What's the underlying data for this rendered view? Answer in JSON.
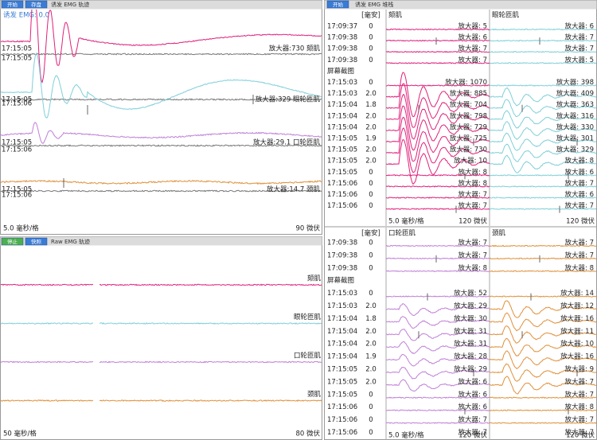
{
  "evoked_trace_panel": {
    "buttons": [
      "开始",
      "存盘"
    ],
    "title": "诱发 EMG 轨迹",
    "readout": "诱发 EMG: 0.0",
    "traces": [
      {
        "times": [
          "17:15:05",
          "17:15:05"
        ],
        "label": "放大器:730 颏肌",
        "color": "#e0207a"
      },
      {
        "times": [
          "17:15:05",
          "17:15:06"
        ],
        "label": "放大器:329 眼轮匝肌",
        "color": "#7fcfd8"
      },
      {
        "times": [
          "17:15:05",
          "17:15:06"
        ],
        "label": "放大器:29.1 口轮匝肌",
        "color": "#c07fd8"
      },
      {
        "times": [
          "17:15:05",
          "17:15:06"
        ],
        "label": "放大器:14.7 颈肌",
        "color": "#e0903a"
      }
    ],
    "timebase": "5.0 毫秒/格",
    "sensitivity": "90 微伏"
  },
  "raw_panel": {
    "buttons": [
      "停止",
      "快照"
    ],
    "title": "Raw EMG 轨迹",
    "channels": [
      {
        "name": "颏肌",
        "color": "#e0207a"
      },
      {
        "name": "眼轮匝肌",
        "color": "#7fcfd8"
      },
      {
        "name": "口轮匝肌",
        "color": "#c07fd8"
      },
      {
        "name": "颈肌",
        "color": "#e0903a"
      }
    ],
    "timebase": "50 毫秒/格",
    "sensitivity": "80 微伏"
  },
  "stack_panel": {
    "button": "开始",
    "title": "诱发 EMG 堆栈",
    "unit_header": "[毫安]",
    "rows": [
      {
        "time": "17:09:37",
        "ma": "0"
      },
      {
        "time": "17:09:38",
        "ma": "0"
      },
      {
        "time": "17:09:38",
        "ma": "0"
      },
      {
        "time": "17:09:38",
        "ma": "0"
      },
      {
        "time": "屏幕截图"
      },
      {
        "time": "17:15:03",
        "ma": "0"
      },
      {
        "time": "17:15:03",
        "ma": "2.0"
      },
      {
        "time": "17:15:04",
        "ma": "1.8"
      },
      {
        "time": "17:15:04",
        "ma": "2.0"
      },
      {
        "time": "17:15:04",
        "ma": "2.0"
      },
      {
        "time": "17:15:05",
        "ma": "1.9"
      },
      {
        "time": "17:15:05",
        "ma": "2.0"
      },
      {
        "time": "17:15:05",
        "ma": "2.0"
      },
      {
        "time": "17:15:05",
        "ma": "0"
      },
      {
        "time": "17:15:06",
        "ma": "0"
      },
      {
        "time": "17:15:06",
        "ma": "0"
      },
      {
        "time": "17:15:06",
        "ma": "0"
      }
    ],
    "channels": [
      {
        "name": "颏肌",
        "color": "#e0207a",
        "amps": [
          "放大器: 5",
          "放大器: 6",
          "放大器: 7",
          "放大器: 7",
          "放大器: 1070",
          "放大器: 885",
          "放大器: 704",
          "放大器: 798",
          "放大器: 729",
          "放大器: 725",
          "放大器: 730",
          "放大器: 10",
          "放大器: 8",
          "放大器: 8",
          "放大器: 7",
          "放大器: 7"
        ]
      },
      {
        "name": "眼轮匝肌",
        "color": "#7fcfd8",
        "amps": [
          "放大器: 6",
          "放大器: 7",
          "放大器: 7",
          "放大器: 5",
          "放大器: 398",
          "放大器: 409",
          "放大器: 363",
          "放大器: 316",
          "放大器: 330",
          "放大器: 301",
          "放大器: 329",
          "放大器: 8",
          "放大器: 6",
          "放大器: 7",
          "放大器: 6",
          "放大器: 7"
        ]
      }
    ],
    "timebase": "5.0 毫秒/格",
    "sensitivities": [
      "120 微伏",
      "120 微伏"
    ]
  },
  "stack_panel_lower": {
    "unit_header": "[毫安]",
    "rows": [
      {
        "time": "17:09:38",
        "ma": "0"
      },
      {
        "time": "17:09:38",
        "ma": "0"
      },
      {
        "time": "17:09:38",
        "ma": "0"
      },
      {
        "time": "屏幕截图"
      },
      {
        "time": "17:15:03",
        "ma": "0"
      },
      {
        "time": "17:15:03",
        "ma": "2.0"
      },
      {
        "time": "17:15:04",
        "ma": "1.8"
      },
      {
        "time": "17:15:04",
        "ma": "2.0"
      },
      {
        "time": "17:15:04",
        "ma": "2.0"
      },
      {
        "time": "17:15:04",
        "ma": "1.9"
      },
      {
        "time": "17:15:05",
        "ma": "2.0"
      },
      {
        "time": "17:15:05",
        "ma": "2.0"
      },
      {
        "time": "17:15:05",
        "ma": "0"
      },
      {
        "time": "17:15:06",
        "ma": "0"
      },
      {
        "time": "17:15:06",
        "ma": "0"
      },
      {
        "time": "17:15:06",
        "ma": "0"
      }
    ],
    "channels": [
      {
        "name": "口轮匝肌",
        "color": "#c07fd8",
        "amps": [
          "放大器: 7",
          "放大器: 7",
          "放大器: 8",
          "放大器: 52",
          "放大器: 29",
          "放大器: 30",
          "放大器: 31",
          "放大器: 31",
          "放大器: 28",
          "放大器: 29",
          "放大器: 6",
          "放大器: 6",
          "放大器: 6",
          "放大器: 7",
          "放大器: 7"
        ]
      },
      {
        "name": "颈肌",
        "color": "#e0903a",
        "amps": [
          "放大器: 7",
          "放大器: 7",
          "放大器: 8",
          "放大器: 14",
          "放大器: 12",
          "放大器: 16",
          "放大器: 11",
          "放大器: 10",
          "放大器: 16",
          "放大器: 9",
          "放大器: 7",
          "放大器: 7",
          "放大器: 8",
          "放大器: 7",
          "放大器: 7"
        ]
      }
    ],
    "timebase": "5.0 毫秒/格",
    "sensitivities": [
      "120 微伏",
      "120 微伏"
    ]
  }
}
